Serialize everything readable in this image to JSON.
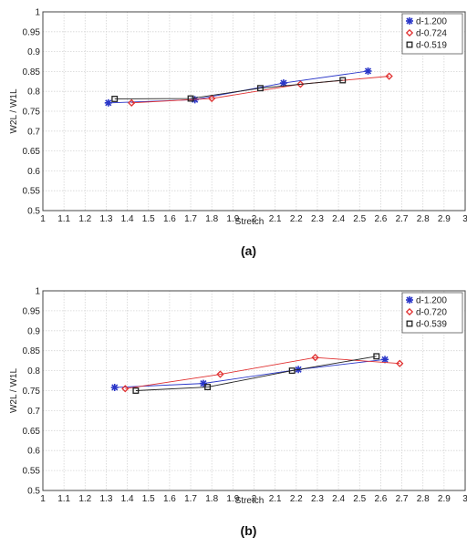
{
  "chart_data": [
    {
      "type": "line",
      "caption": "(a)",
      "xlabel": "Stretch",
      "ylabel": "W2L / W1L",
      "xlim": [
        1,
        3
      ],
      "ylim": [
        0.5,
        1
      ],
      "xticks": [
        "1",
        "1.1",
        "1.2",
        "1.3",
        "1.4",
        "1.5",
        "1.6",
        "1.7",
        "1.8",
        "1.9",
        "2",
        "2.1",
        "2.2",
        "2.3",
        "2.4",
        "2.5",
        "2.6",
        "2.7",
        "2.8",
        "2.9",
        "3"
      ],
      "yticks": [
        "0.5",
        "0.55",
        "0.6",
        "0.65",
        "0.7",
        "0.75",
        "0.8",
        "0.85",
        "0.9",
        "0.95",
        "1"
      ],
      "grid": true,
      "legend_position": "top-right",
      "series": [
        {
          "name": "d-1.200",
          "color": "#2a36c8",
          "marker": "star",
          "x": [
            1.31,
            1.72,
            2.14,
            2.54
          ],
          "y": [
            0.771,
            0.779,
            0.821,
            0.851
          ]
        },
        {
          "name": "d-0.724",
          "color": "#e03030",
          "marker": "diamond",
          "x": [
            1.42,
            1.8,
            2.22,
            2.64
          ],
          "y": [
            0.771,
            0.782,
            0.818,
            0.838
          ]
        },
        {
          "name": "d-0.519",
          "color": "#222222",
          "marker": "square",
          "x": [
            1.34,
            1.7,
            2.03,
            2.42
          ],
          "y": [
            0.781,
            0.782,
            0.808,
            0.828
          ]
        }
      ]
    },
    {
      "type": "line",
      "caption": "(b)",
      "xlabel": "Stretch",
      "ylabel": "W2L / W1L",
      "xlim": [
        1,
        3
      ],
      "ylim": [
        0.5,
        1
      ],
      "xticks": [
        "1",
        "1.1",
        "1.2",
        "1.3",
        "1.4",
        "1.5",
        "1.6",
        "1.7",
        "1.8",
        "1.9",
        "2",
        "2.1",
        "2.2",
        "2.3",
        "2.4",
        "2.5",
        "2.6",
        "2.7",
        "2.8",
        "2.9",
        "3"
      ],
      "yticks": [
        "0.5",
        "0.55",
        "0.6",
        "0.65",
        "0.7",
        "0.75",
        "0.8",
        "0.85",
        "0.9",
        "0.95",
        "1"
      ],
      "grid": true,
      "legend_position": "top-right",
      "series": [
        {
          "name": "d-1.200",
          "color": "#2a36c8",
          "marker": "star",
          "x": [
            1.34,
            1.76,
            2.21,
            2.62
          ],
          "y": [
            0.758,
            0.768,
            0.803,
            0.828
          ]
        },
        {
          "name": "d-0.720",
          "color": "#e03030",
          "marker": "diamond",
          "x": [
            1.39,
            1.84,
            2.29,
            2.69
          ],
          "y": [
            0.755,
            0.791,
            0.833,
            0.818
          ]
        },
        {
          "name": "d-0.539",
          "color": "#222222",
          "marker": "square",
          "x": [
            1.44,
            1.78,
            2.18,
            2.58
          ],
          "y": [
            0.75,
            0.759,
            0.8,
            0.836
          ]
        }
      ]
    }
  ]
}
